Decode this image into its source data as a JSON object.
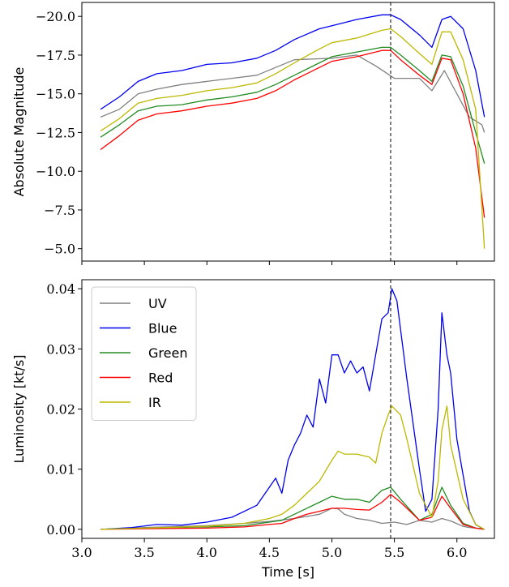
{
  "chart_data": [
    {
      "type": "line",
      "ylabel": "Absolute Magnitude",
      "xlabel": "",
      "xlim": [
        3.0,
        6.3
      ],
      "ylim": [
        -4.2,
        -20.9
      ],
      "y_inverted": true,
      "grid": false,
      "yticks": [
        -20.0,
        -17.5,
        -15.0,
        -12.5,
        -10.0,
        -7.5,
        -5.0
      ],
      "ytick_labels": [
        "−20.0",
        "−17.5",
        "−15.0",
        "−12.5",
        "−10.0",
        "−7.5",
        "−5.0"
      ],
      "xticks": [
        3.0,
        3.5,
        4.0,
        4.5,
        5.0,
        5.5,
        6.0
      ],
      "vline_x": 5.47,
      "series": [
        {
          "name": "UV",
          "color": "#808080",
          "x": [
            3.15,
            3.3,
            3.45,
            3.6,
            3.8,
            4.0,
            4.2,
            4.4,
            4.55,
            4.7,
            5.0,
            5.2,
            5.35,
            5.5,
            5.7,
            5.8,
            5.9,
            6.0,
            6.1,
            6.2,
            6.22
          ],
          "y": [
            -13.5,
            -14.0,
            -15.0,
            -15.3,
            -15.6,
            -15.8,
            -16.0,
            -16.2,
            -16.7,
            -17.2,
            -17.3,
            -17.5,
            -16.8,
            -16.0,
            -16.0,
            -15.2,
            -16.5,
            -15.0,
            -13.5,
            -13.0,
            -12.5
          ]
        },
        {
          "name": "Blue",
          "color": "#0000ee",
          "x": [
            3.15,
            3.3,
            3.45,
            3.6,
            3.8,
            4.0,
            4.2,
            4.4,
            4.55,
            4.7,
            4.9,
            5.0,
            5.2,
            5.4,
            5.47,
            5.55,
            5.7,
            5.8,
            5.88,
            5.95,
            6.05,
            6.15,
            6.22
          ],
          "y": [
            -14.0,
            -14.8,
            -15.8,
            -16.3,
            -16.5,
            -16.9,
            -17.0,
            -17.3,
            -17.8,
            -18.5,
            -19.2,
            -19.4,
            -19.8,
            -20.1,
            -20.1,
            -19.8,
            -18.8,
            -18.0,
            -19.8,
            -20.0,
            -19.2,
            -16.5,
            -13.5
          ]
        },
        {
          "name": "Green",
          "color": "#228b22",
          "x": [
            3.15,
            3.3,
            3.45,
            3.6,
            3.8,
            4.0,
            4.2,
            4.4,
            4.55,
            4.7,
            4.9,
            5.0,
            5.2,
            5.4,
            5.47,
            5.55,
            5.7,
            5.8,
            5.88,
            5.95,
            6.05,
            6.15,
            6.22
          ],
          "y": [
            -12.2,
            -13.0,
            -13.9,
            -14.2,
            -14.3,
            -14.6,
            -14.8,
            -15.1,
            -15.6,
            -16.2,
            -17.0,
            -17.4,
            -17.7,
            -18.0,
            -18.0,
            -17.5,
            -16.5,
            -15.8,
            -17.5,
            -17.4,
            -15.5,
            -12.5,
            -10.5
          ]
        },
        {
          "name": "Red",
          "color": "#ff0000",
          "x": [
            3.15,
            3.3,
            3.45,
            3.6,
            3.8,
            4.0,
            4.2,
            4.4,
            4.55,
            4.7,
            4.9,
            5.0,
            5.2,
            5.4,
            5.47,
            5.55,
            5.7,
            5.8,
            5.88,
            5.95,
            6.05,
            6.15,
            6.22
          ],
          "y": [
            -11.4,
            -12.3,
            -13.3,
            -13.7,
            -13.9,
            -14.2,
            -14.4,
            -14.7,
            -15.2,
            -15.9,
            -16.7,
            -17.1,
            -17.4,
            -17.8,
            -17.8,
            -17.2,
            -16.2,
            -15.6,
            -17.3,
            -17.2,
            -15.0,
            -11.5,
            -7.0
          ]
        },
        {
          "name": "IR",
          "color": "#bdb800",
          "x": [
            3.15,
            3.3,
            3.45,
            3.6,
            3.8,
            4.0,
            4.2,
            4.4,
            4.55,
            4.7,
            4.9,
            5.0,
            5.2,
            5.4,
            5.47,
            5.55,
            5.7,
            5.8,
            5.88,
            5.95,
            6.05,
            6.15,
            6.22
          ],
          "y": [
            -12.6,
            -13.4,
            -14.4,
            -14.7,
            -14.9,
            -15.2,
            -15.4,
            -15.7,
            -16.3,
            -17.0,
            -17.9,
            -18.3,
            -18.6,
            -19.1,
            -19.2,
            -18.7,
            -17.6,
            -16.9,
            -19.0,
            -19.0,
            -17.2,
            -14.0,
            -5.0
          ]
        }
      ]
    },
    {
      "type": "line",
      "ylabel": "Luminosity [kt/s]",
      "xlabel": "Time [s]",
      "xlim": [
        3.0,
        6.3
      ],
      "ylim": [
        -0.0015,
        0.0415
      ],
      "grid": false,
      "yticks": [
        0.0,
        0.01,
        0.02,
        0.03,
        0.04
      ],
      "ytick_labels": [
        "0.00",
        "0.01",
        "0.02",
        "0.03",
        "0.04"
      ],
      "xticks": [
        3.0,
        3.5,
        4.0,
        4.5,
        5.0,
        5.5,
        6.0
      ],
      "xtick_labels": [
        "3.0",
        "3.5",
        "4.0",
        "4.5",
        "5.0",
        "5.5",
        "6.0"
      ],
      "vline_x": 5.47,
      "legend_position": "top-left",
      "series": [
        {
          "name": "UV",
          "color": "#808080",
          "x": [
            3.15,
            3.5,
            4.0,
            4.3,
            4.5,
            4.7,
            4.9,
            5.0,
            5.05,
            5.1,
            5.2,
            5.3,
            5.4,
            5.5,
            5.6,
            5.7,
            5.8,
            5.88,
            5.95,
            6.05,
            6.1,
            6.2,
            6.22
          ],
          "y": [
            0.0,
            0.0003,
            0.0006,
            0.001,
            0.0013,
            0.0018,
            0.0025,
            0.0035,
            0.0034,
            0.0025,
            0.0018,
            0.0015,
            0.001,
            0.0012,
            0.0008,
            0.0015,
            0.0012,
            0.0018,
            0.0014,
            0.0005,
            0.0003,
            0.0001,
            0.0
          ]
        },
        {
          "name": "Blue",
          "color": "#0000ee",
          "x": [
            3.15,
            3.4,
            3.6,
            3.8,
            4.0,
            4.2,
            4.4,
            4.5,
            4.55,
            4.6,
            4.65,
            4.7,
            4.75,
            4.8,
            4.85,
            4.9,
            4.95,
            5.0,
            5.05,
            5.1,
            5.15,
            5.2,
            5.25,
            5.3,
            5.35,
            5.4,
            5.45,
            5.48,
            5.52,
            5.6,
            5.7,
            5.75,
            5.8,
            5.85,
            5.88,
            5.92,
            5.95,
            6.0,
            6.05,
            6.1,
            6.15,
            6.2,
            6.22
          ],
          "y": [
            0.0,
            0.0003,
            0.0008,
            0.0007,
            0.0012,
            0.002,
            0.004,
            0.007,
            0.0085,
            0.006,
            0.0115,
            0.014,
            0.016,
            0.019,
            0.017,
            0.025,
            0.021,
            0.029,
            0.029,
            0.026,
            0.028,
            0.026,
            0.027,
            0.023,
            0.029,
            0.035,
            0.036,
            0.04,
            0.038,
            0.025,
            0.01,
            0.003,
            0.005,
            0.02,
            0.036,
            0.029,
            0.026,
            0.015,
            0.009,
            0.003,
            0.0008,
            0.0002,
            0.0
          ]
        },
        {
          "name": "Green",
          "color": "#228b22",
          "x": [
            3.15,
            3.5,
            4.0,
            4.3,
            4.5,
            4.6,
            4.7,
            4.8,
            4.9,
            5.0,
            5.1,
            5.2,
            5.3,
            5.4,
            5.47,
            5.55,
            5.7,
            5.8,
            5.88,
            5.95,
            6.05,
            6.15,
            6.22
          ],
          "y": [
            0.0,
            0.0002,
            0.0004,
            0.0006,
            0.0012,
            0.0015,
            0.0025,
            0.0035,
            0.0045,
            0.0055,
            0.005,
            0.005,
            0.0045,
            0.0065,
            0.007,
            0.005,
            0.0015,
            0.0025,
            0.007,
            0.004,
            0.001,
            0.0002,
            0.0
          ]
        },
        {
          "name": "Red",
          "color": "#ff0000",
          "x": [
            3.15,
            3.5,
            4.0,
            4.3,
            4.5,
            4.6,
            4.7,
            4.8,
            4.9,
            5.0,
            5.1,
            5.2,
            5.3,
            5.4,
            5.47,
            5.55,
            5.7,
            5.8,
            5.88,
            5.95,
            6.05,
            6.15,
            6.22
          ],
          "y": [
            0.0,
            0.0001,
            0.0002,
            0.0004,
            0.0008,
            0.001,
            0.0018,
            0.0025,
            0.003,
            0.0035,
            0.0035,
            0.0033,
            0.0032,
            0.0045,
            0.0058,
            0.0045,
            0.0015,
            0.002,
            0.0055,
            0.0035,
            0.0008,
            0.0002,
            0.0
          ]
        },
        {
          "name": "IR",
          "color": "#bdb800",
          "x": [
            3.15,
            3.5,
            4.0,
            4.3,
            4.5,
            4.6,
            4.7,
            4.8,
            4.9,
            5.0,
            5.05,
            5.1,
            5.2,
            5.3,
            5.35,
            5.4,
            5.45,
            5.48,
            5.55,
            5.6,
            5.7,
            5.8,
            5.85,
            5.88,
            5.92,
            5.95,
            6.05,
            6.15,
            6.22
          ],
          "y": [
            0.0,
            0.0002,
            0.0005,
            0.001,
            0.0018,
            0.0025,
            0.004,
            0.006,
            0.008,
            0.0115,
            0.013,
            0.0125,
            0.0125,
            0.012,
            0.011,
            0.016,
            0.019,
            0.0205,
            0.019,
            0.015,
            0.006,
            0.002,
            0.008,
            0.0165,
            0.0205,
            0.014,
            0.005,
            0.0008,
            0.0
          ]
        }
      ]
    }
  ]
}
